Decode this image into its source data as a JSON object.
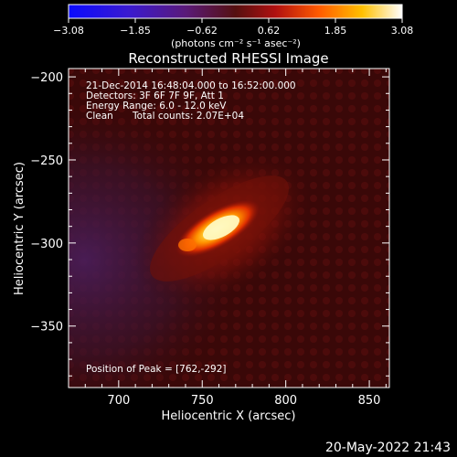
{
  "colorbar": {
    "min": -3.08,
    "max": 3.08,
    "ticks": [
      "-3.08",
      "-1.85",
      "-0.62",
      "0.62",
      "1.85",
      "3.08"
    ],
    "unit_label": "(photons cm⁻² s⁻¹ asec⁻²)",
    "colormap": "blue-purple-red-orange-yellow-white"
  },
  "chart_data": {
    "type": "heatmap",
    "title": "Reconstructed RHESSI Image",
    "xlabel": "Heliocentric X (arcsec)",
    "ylabel": "Heliocentric Y (arcsec)",
    "xlim": [
      670,
      862
    ],
    "ylim": [
      -387,
      -195
    ],
    "xticks": [
      700,
      750,
      800,
      850
    ],
    "yticks": [
      -200,
      -250,
      -300,
      -350
    ],
    "peak": {
      "x": 762,
      "y": -292
    },
    "source_orientation": "elongated bright source oriented lower-left to upper-right",
    "grid": false
  },
  "annotations": {
    "time_range": "21-Dec-2014 16:48:04.000 to 16:52:00.000",
    "detectors": "Detectors: 3F 6F 7F 9F, Att 1",
    "energy": "Energy Range: 6.0 - 12.0 keV",
    "clean_label": "Clean",
    "total_counts": "Total counts: 2.07E+04",
    "peak_position": "Position of Peak = [762,-292]"
  },
  "footer": {
    "timestamp": "20-May-2022 21:43"
  },
  "colors": {
    "background": "#000000",
    "map_background": "#3a0808",
    "source_core": "#ffffe0"
  }
}
